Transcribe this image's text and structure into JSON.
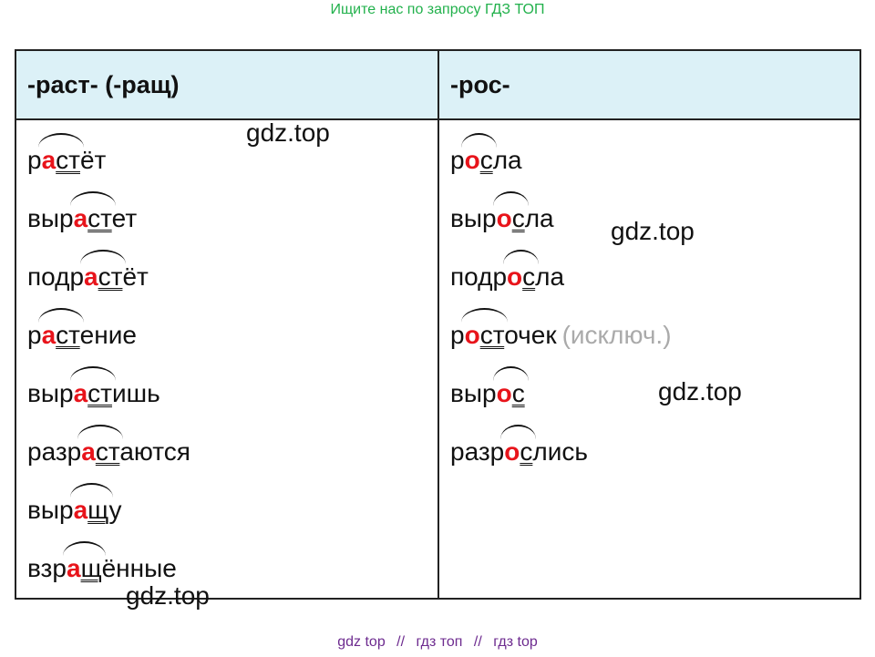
{
  "banner": {
    "top": "Ищите нас по запросу ГДЗ ТОП"
  },
  "table": {
    "headers": [
      "-раст- (-ращ)",
      "-рос-"
    ],
    "left_words": [
      {
        "pre": "р",
        "v": "а",
        "c": "ст",
        "post": "ёт"
      },
      {
        "pre": "выр",
        "v": "а",
        "c": "ст",
        "post": "ет"
      },
      {
        "pre": "подр",
        "v": "а",
        "c": "ст",
        "post": "ёт"
      },
      {
        "pre": "р",
        "v": "а",
        "c": "ст",
        "post": "ение"
      },
      {
        "pre": "выр",
        "v": "а",
        "c": "ст",
        "post": "ишь"
      },
      {
        "pre": "разр",
        "v": "а",
        "c": "ст",
        "post": "аются"
      },
      {
        "pre": "выр",
        "v": "а",
        "c": "щ",
        "post": "у"
      },
      {
        "pre": "взр",
        "v": "а",
        "c": "щ",
        "post": "ённые"
      }
    ],
    "right_words": [
      {
        "pre": "р",
        "v": "о",
        "c": "с",
        "post": "ла"
      },
      {
        "pre": "выр",
        "v": "о",
        "c": "с",
        "post": "ла"
      },
      {
        "pre": "подр",
        "v": "о",
        "c": "с",
        "post": "ла"
      },
      {
        "pre": "р",
        "v": "о",
        "c": "ст",
        "post": "очек",
        "note": "(исключ.)"
      },
      {
        "pre": "выр",
        "v": "о",
        "c": "с",
        "post": ""
      },
      {
        "pre": "разр",
        "v": "о",
        "c": "с",
        "post": "лись"
      }
    ]
  },
  "watermarks": [
    "gdz.top",
    "gdz.top",
    "gdz.top",
    "gdz.top"
  ],
  "footer": {
    "parts": [
      "gdz top",
      "//",
      "гдз топ",
      "//",
      "гдз top"
    ]
  },
  "colors": {
    "vowel": "#e8141b",
    "header_bg": "#dcf1f7",
    "banner_top": "#22b14c",
    "banner_bottom": "#6d2b8f"
  }
}
